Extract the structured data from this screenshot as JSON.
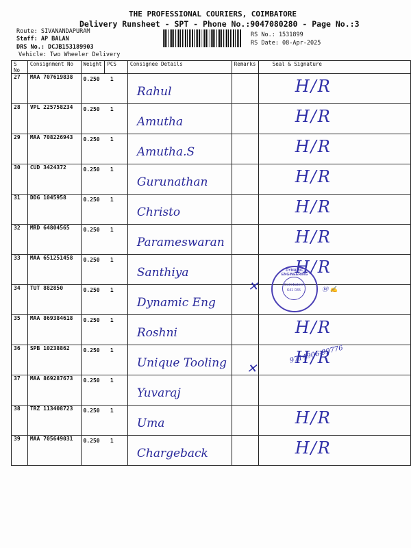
{
  "header": {
    "company": "THE PROFESSIONAL COURIERS, COIMBATORE",
    "subtitle": "Delivery Runsheet - SPT - Phone No.:9047080280 - Page No.:3",
    "route": "Route: SIVANANDAPURAM",
    "staff": "Staff: AP BALAN",
    "drs_no": "DRS No.: DCJB153189903",
    "vehicle": "Vehicle: Two Wheeler Delivery",
    "rs_no": "RS No.: 1531899",
    "rs_date": "RS Date: 08-Apr-2025"
  },
  "table": {
    "columns": [
      "S No",
      "Consignment No",
      "Weight",
      "PCS",
      "Consignee Details",
      "Remarks",
      "Seal & Signature"
    ],
    "rows": [
      {
        "sno": "27",
        "cn": "MAA 707619838",
        "weight": "0.250",
        "pcs": "1",
        "consignee": "Rahul",
        "sign": "H/R"
      },
      {
        "sno": "28",
        "cn": "VPL 225758234",
        "weight": "0.250",
        "pcs": "1",
        "consignee": "Amutha",
        "sign": "H/R"
      },
      {
        "sno": "29",
        "cn": "MAA 708226943",
        "weight": "0.250",
        "pcs": "1",
        "consignee": "Amutha.S",
        "sign": "H/R"
      },
      {
        "sno": "30",
        "cn": "CUD 3424372",
        "weight": "0.250",
        "pcs": "1",
        "consignee": "Gurunathan",
        "sign": "H/R"
      },
      {
        "sno": "31",
        "cn": "DDG 1045958",
        "weight": "0.250",
        "pcs": "1",
        "consignee": "Christo",
        "sign": "H/R"
      },
      {
        "sno": "32",
        "cn": "MRD 64804565",
        "weight": "0.250",
        "pcs": "1",
        "consignee": "Parameswaran",
        "sign": "H/R"
      },
      {
        "sno": "33",
        "cn": "MAA 651251458",
        "weight": "0.250",
        "pcs": "1",
        "consignee": "Santhiya",
        "sign": "H/R"
      },
      {
        "sno": "34",
        "cn": "TUT 882850",
        "weight": "0.250",
        "pcs": "1",
        "consignee": "Dynamic Eng",
        "sign": ""
      },
      {
        "sno": "35",
        "cn": "MAA 869384618",
        "weight": "0.250",
        "pcs": "1",
        "consignee": "Roshni",
        "sign": "H/R"
      },
      {
        "sno": "36",
        "cn": "SPB 10238862",
        "weight": "0.250",
        "pcs": "1",
        "consignee": "Unique Tooling",
        "sign": "H/R"
      },
      {
        "sno": "37",
        "cn": "MAA 869287673",
        "weight": "0.250",
        "pcs": "1",
        "consignee": "Yuvaraj",
        "sign": ""
      },
      {
        "sno": "38",
        "cn": "TRZ 113408723",
        "weight": "0.250",
        "pcs": "1",
        "consignee": "Uma",
        "sign": "H/R"
      },
      {
        "sno": "39",
        "cn": "MAA 705649031",
        "weight": "0.250",
        "pcs": "1",
        "consignee": "Chargeback",
        "sign": "H/R"
      }
    ]
  },
  "stamp": {
    "ring": "DYNAMIC ENGINEERING",
    "city": "Coimbatore",
    "pin": "641 035"
  },
  "notes": {
    "row37_phone": "9714906-99776"
  }
}
